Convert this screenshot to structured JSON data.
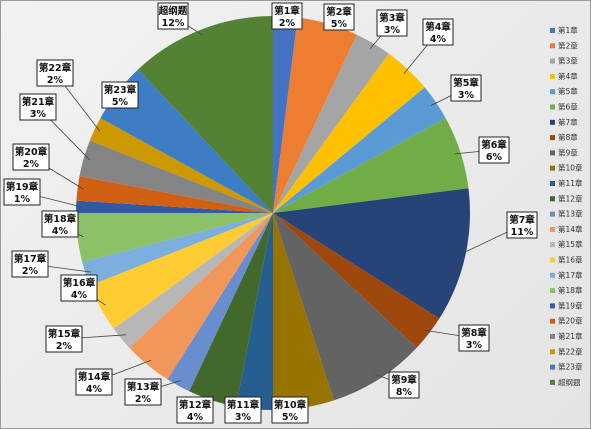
{
  "chart_data": {
    "type": "pie",
    "title": "",
    "categories": [
      "第1章",
      "第2章",
      "第3章",
      "第4章",
      "第5章",
      "第6章",
      "第7章",
      "第8章",
      "第9章",
      "第10章",
      "第11章",
      "第12章",
      "第13章",
      "第14章",
      "第15章",
      "第16章",
      "第17章",
      "第18章",
      "第19章",
      "第20章",
      "第21章",
      "第22章",
      "第23章",
      "超纲题"
    ],
    "legend_labels": [
      "第1章",
      "第2章",
      "第3章",
      "第4章",
      "第5章",
      "第6章",
      "第7章",
      "第8章",
      "第9章",
      "第10章",
      "第11章",
      "第12章",
      "第13章",
      "第14章",
      "第15章",
      "第16章",
      "第17章",
      "第18章",
      "第19章",
      "第20章",
      "第21章",
      "第22章",
      "第23章",
      "超纲题"
    ],
    "values": [
      2,
      5,
      3,
      4,
      3,
      6,
      11,
      3,
      8,
      5,
      3,
      4,
      2,
      4,
      2,
      4,
      2,
      4,
      1,
      2,
      3,
      2,
      5,
      12
    ],
    "value_labels": [
      "2%",
      "5%",
      "3%",
      "4%",
      "3%",
      "6%",
      "11%",
      "3%",
      "8%",
      "5%",
      "3%",
      "4%",
      "2%",
      "4%",
      "2%",
      "4%",
      "2%",
      "4%",
      "1%",
      "2%",
      "3%",
      "2%",
      "5%",
      "12%"
    ],
    "colors": [
      "#4472C4",
      "#ED7D31",
      "#A5A5A5",
      "#FFC000",
      "#5B9BD5",
      "#70AD47",
      "#264478",
      "#9E480E",
      "#636363",
      "#997300",
      "#255E91",
      "#43682B",
      "#698ED0",
      "#F1975A",
      "#B7B7B7",
      "#FFCD33",
      "#7CAFDD",
      "#8CC168",
      "#335AA1",
      "#D26012",
      "#848484",
      "#CC9A00",
      "#3C7DC4",
      "#548235"
    ],
    "legend_position": "right"
  }
}
